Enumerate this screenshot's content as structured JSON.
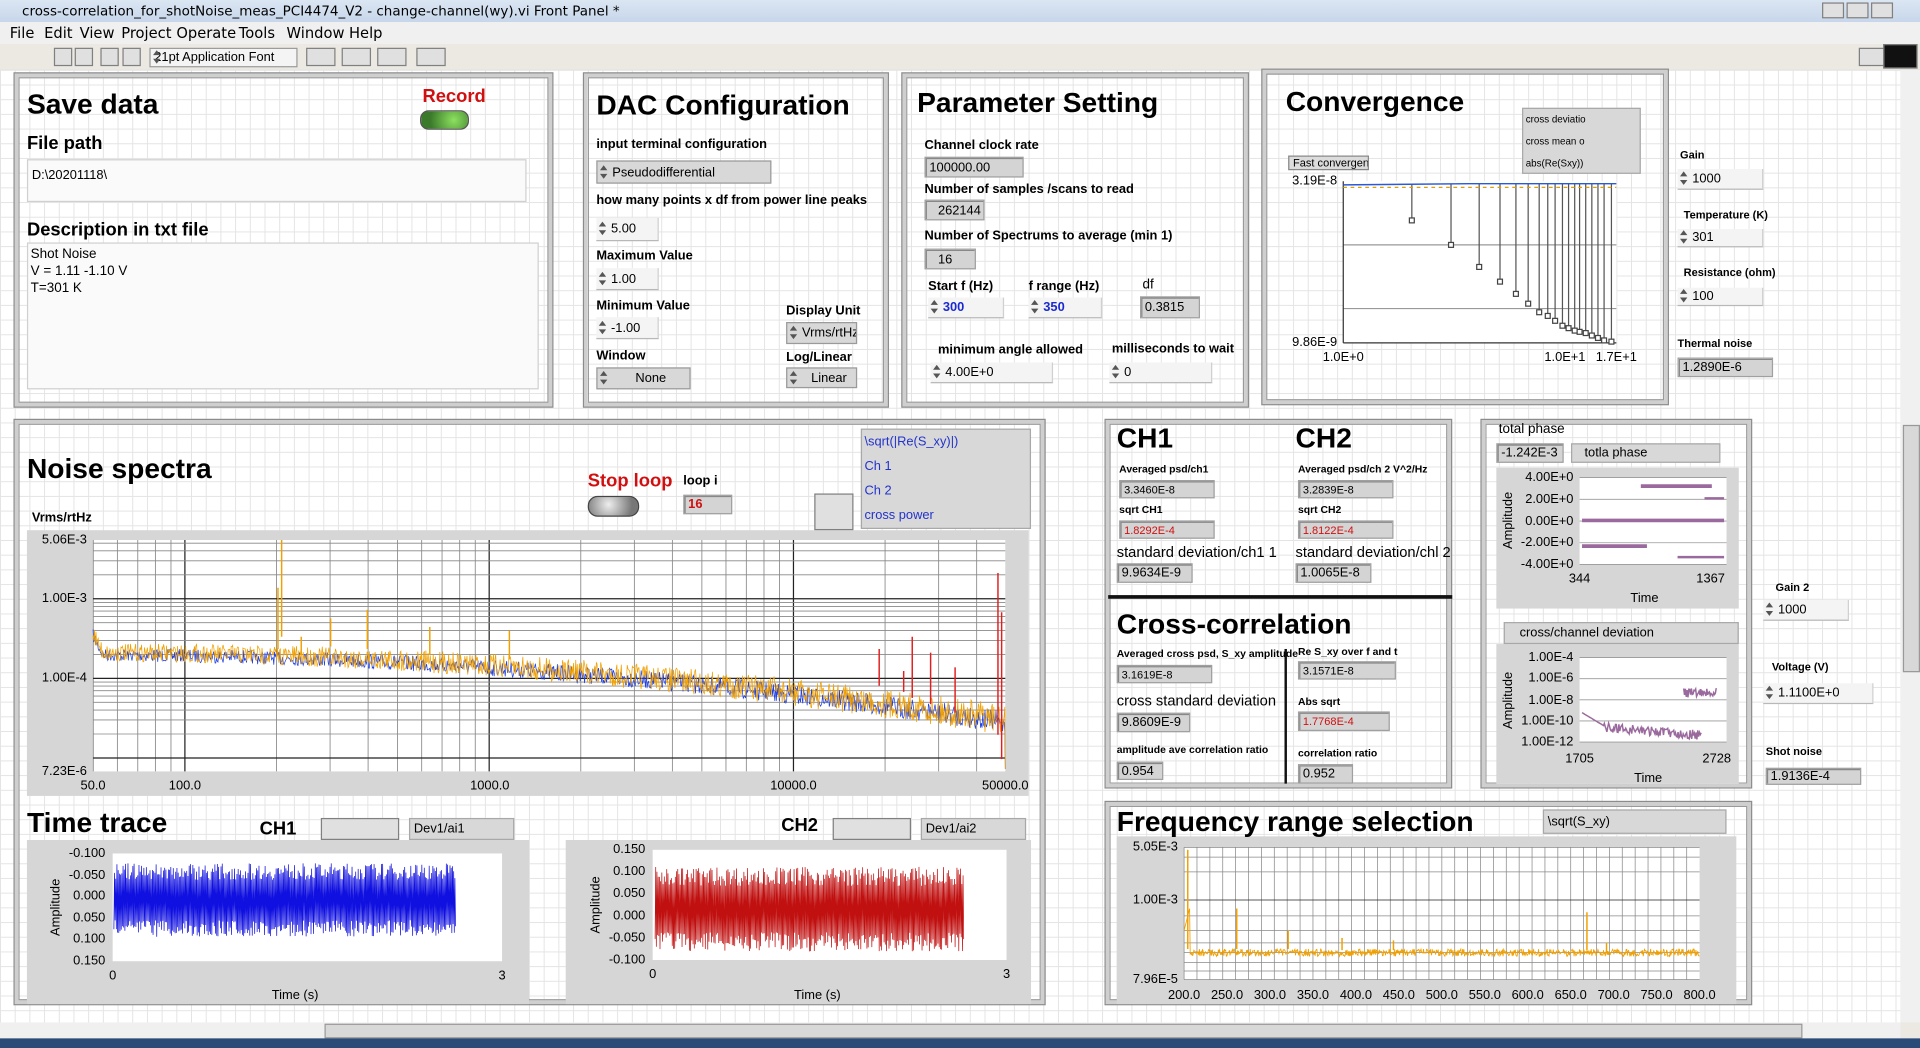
{
  "window": {
    "title": "cross-correlation_for_shotNoise_meas_PCI4474_V2 - change-channel(wy).vi Front Panel *",
    "menu": [
      "File",
      "Edit",
      "View",
      "Project",
      "Operate",
      "Tools",
      "Window",
      "Help"
    ],
    "font_ring": "21pt Application Font"
  },
  "save_data": {
    "title": "Save data",
    "record": "Record",
    "file_path_label": "File path",
    "file_path": "D:\\20201118\\",
    "description_label": "Description in txt file",
    "description": [
      "Shot Noise",
      "V = 1.11 -1.10 V",
      "T=301 K"
    ]
  },
  "dac": {
    "title": "DAC Configuration",
    "input_terminal_label": "input terminal configuration",
    "input_terminal": "Pseudodifferential",
    "points_label": "how many points x df from power line peaks",
    "points": "5.00",
    "max_label": "Maximum Value",
    "max": "1.00",
    "min_label": "Minimum Value",
    "min": "-1.00",
    "display_unit_label": "Display Unit",
    "display_unit": "Vrms/rtHz",
    "window_label": "Window",
    "window": "None",
    "log_linear_label": "Log/Linear",
    "log_linear": "Linear"
  },
  "parameters": {
    "title": "Parameter Setting",
    "clock_label": "Channel clock rate",
    "clock": "100000.00",
    "samples_label": "Number of samples /scans to read",
    "samples": "262144",
    "spectrums_label": "Number of Spectrums to average (min 1)",
    "spectrums": "16",
    "start_f_label": "Start f (Hz)",
    "start_f": "300",
    "f_range_label": "f range (Hz)",
    "f_range": "350",
    "df_label": "df",
    "df": "0.3815",
    "min_angle_label": "minimum angle allowed",
    "min_angle": "4.00E+0",
    "wait_label": "milliseconds to wait",
    "wait": "0"
  },
  "convergence": {
    "title": "Convergence",
    "button": "Fast convergence",
    "legend": [
      "cross deviatio",
      "cross mean o",
      "abs(Re(Sxy))"
    ],
    "yticks": [
      "3.19E-8",
      "9.86E-9"
    ],
    "xticks": [
      "1.0E+0",
      "1.0E+1",
      "1.7E+1"
    ]
  },
  "side": {
    "gain_label": "Gain",
    "gain": "1000",
    "temperature_label": "Temperature (K)",
    "temperature": "301",
    "resistance_label": "Resistance (ohm)",
    "resistance": "100",
    "thermal_noise_label": "Thermal noise",
    "thermal_noise": "1.2890E-6",
    "gain2_label": "Gain 2",
    "gain2": "1000",
    "voltage_label": "Voltage (V)",
    "voltage": "1.1100E+0",
    "shot_noise_label": "Shot noise",
    "shot_noise": "1.9136E-4"
  },
  "noise_spectra": {
    "title": "Noise spectra",
    "stop": "Stop loop",
    "loop_label": "loop i",
    "loop": "16",
    "legend": [
      "\\sqrt(|Re(S_xy)|)",
      "Ch 1",
      "Ch 2",
      "cross power"
    ],
    "y_label": "Vrms/rtHz",
    "yticks": [
      "5.06E-3",
      "1.00E-3",
      "1.00E-4",
      "7.23E-6"
    ],
    "xticks": [
      "50.0",
      "100.0",
      "1000.0",
      "10000.0",
      "50000.0"
    ]
  },
  "time_trace": {
    "title": "Time trace",
    "ch1": {
      "label": "CH1",
      "legend": "Dev1/ai1",
      "yticks": [
        "-0.100",
        "-0.050",
        "0.000",
        "0.050",
        "0.100",
        "0.150"
      ],
      "xticks": [
        "0",
        "3"
      ],
      "y_label": "Amplitude",
      "x_label": "Time (s)"
    },
    "ch2": {
      "label": "CH2",
      "legend": "Dev1/ai2",
      "yticks": [
        "0.150",
        "0.100",
        "0.050",
        "0.000",
        "-0.050",
        "-0.100"
      ],
      "xticks": [
        "0",
        "3"
      ],
      "y_label": "Amplitude",
      "x_label": "Time (s)"
    }
  },
  "channels": {
    "ch1": {
      "title": "CH1",
      "psd_label": "Averaged psd/ch1",
      "psd": "3.3460E-8",
      "sqrt_label": "sqrt CH1",
      "sqrt": "1.8292E-4",
      "std_label": "standard deviation/ch1 1",
      "std": "9.9634E-9"
    },
    "ch2": {
      "title": "CH2",
      "psd_label": "Averaged psd/ch 2 V^2/Hz",
      "psd": "3.2839E-8",
      "sqrt_label": "sqrt CH2",
      "sqrt": "1.8122E-4",
      "std_label": "standard deviation/chl 2",
      "std": "1.0065E-8"
    }
  },
  "cross": {
    "title": "Cross-correlation",
    "amp_label": "Averaged cross psd, S_xy amplitude",
    "amp": "3.1619E-8",
    "std_label": "cross standard deviation",
    "std": "9.8609E-9",
    "ratio_ave_label": "amplitude ave correlation ratio",
    "ratio_ave": "0.954",
    "re_label": "Re S_xy over f and t",
    "re": "3.1571E-8",
    "abs_label": "Abs sqrt",
    "abs": "1.7768E-4",
    "ratio_label": "correlation ratio",
    "ratio": "0.952"
  },
  "phase": {
    "label": "total phase",
    "value": "-1.242E-3",
    "legend": "totla phase",
    "yticks": [
      "4.00E+0",
      "2.00E+0",
      "0.00E+0",
      "-2.00E+0",
      "-4.00E+0"
    ],
    "xticks": [
      "344",
      "1367"
    ],
    "y_label": "Amplitude",
    "x_label": "Time"
  },
  "deviation": {
    "legend": "cross/channel deviation",
    "yticks": [
      "1.00E-4",
      "1.00E-6",
      "1.00E-8",
      "1.00E-10",
      "1.00E-12"
    ],
    "xticks": [
      "1705",
      "2728"
    ],
    "y_label": "Amplitude",
    "x_label": "Time"
  },
  "frequency_range": {
    "title": "Frequency range selection",
    "legend": "\\sqrt(S_xy)",
    "yticks": [
      "5.05E-3",
      "1.00E-3",
      "7.96E-5"
    ],
    "xticks": [
      "200.0",
      "250.0",
      "300.0",
      "350.0",
      "400.0",
      "450.0",
      "500.0",
      "550.0",
      "600.0",
      "650.0",
      "700.0",
      "750.0",
      "800.0"
    ]
  }
}
